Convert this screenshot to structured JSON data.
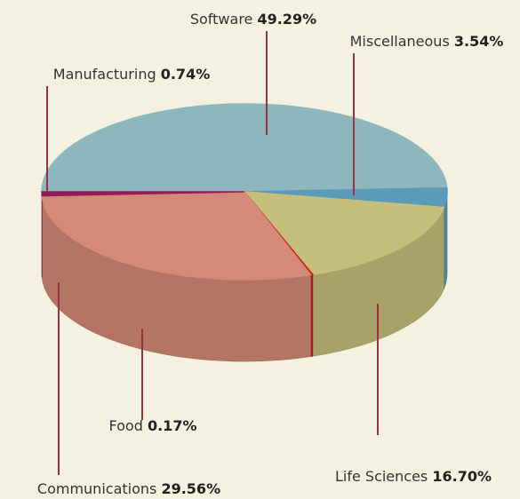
{
  "chart_data": {
    "type": "pie",
    "three_d": true,
    "categories": [
      "Software",
      "Miscellaneous",
      "Life Sciences",
      "Food",
      "Communications",
      "Manufacturing"
    ],
    "values": [
      49.29,
      3.54,
      16.7,
      0.17,
      29.56,
      0.74
    ],
    "value_labels": [
      "49.29%",
      "3.54%",
      "16.70%",
      "0.17%",
      "29.56%",
      "0.74%"
    ],
    "colors": [
      "#8db7bc",
      "#5a9bb9",
      "#c6bf7c",
      "#c8201e",
      "#d48a76",
      "#8c1f55"
    ]
  }
}
